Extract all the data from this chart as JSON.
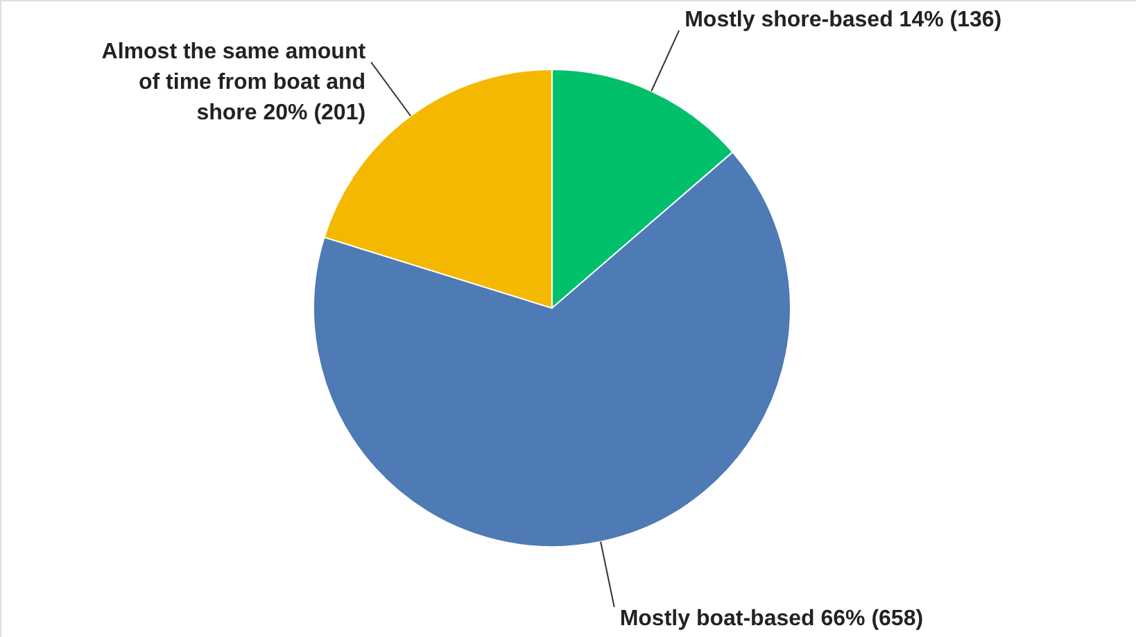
{
  "chart_data": {
    "type": "pie",
    "categories": [
      "Mostly shore-based",
      "Mostly boat-based",
      "Almost the same amount of time from boat and shore"
    ],
    "values": [
      136,
      658,
      201
    ],
    "colors": [
      "#00c06b",
      "#4e7ab5",
      "#f5b800"
    ],
    "value_labels": [
      "14% (136)",
      "66% (658)",
      "20% (201)"
    ]
  }
}
